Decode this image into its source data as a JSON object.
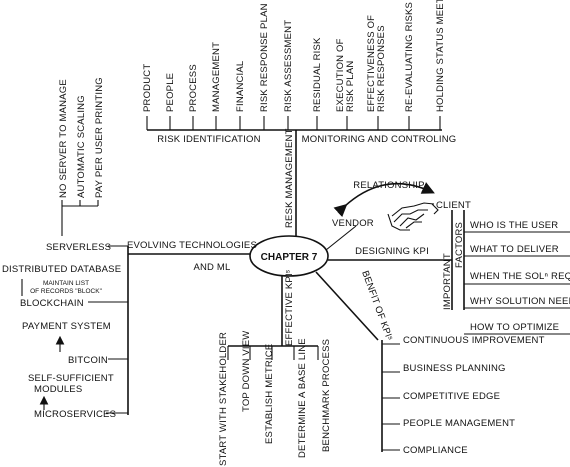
{
  "center": "CHAPTER 7",
  "risk": {
    "title": "RESK MANAGEMENT",
    "identification": {
      "title": "RISK IDENTIFICATION",
      "items": [
        "PRODUCT",
        "PEOPLE",
        "PROCESS",
        "MANAGEMENT",
        "FINANCIAL",
        "RISK RESPONSE PLAN",
        "RISK ASSESSMENT"
      ]
    },
    "monitoring": {
      "title": "MONITORING AND CONTROLING",
      "items": [
        "RESIDUAL RISK",
        "EXECUTION OF\nRISK PLAN",
        "EFFECTIVENESS OF\nRISK RESPONSES",
        "RE-EVALUATING RISKS",
        "HOLDING STATUS MEETING"
      ]
    }
  },
  "relationship": {
    "title": "RELATIONSHIP",
    "client": "CLIENT",
    "vendor": "VENDOR"
  },
  "kpi": {
    "title": "DESIGNING KPI",
    "factors_label": "FACTORS",
    "important_label": "IMPORTANT",
    "items": [
      "WHO IS THE USER",
      "WHAT TO DELIVER",
      "WHEN THE SOLⁿ REQ",
      "WHY SOLUTION NEEDED",
      "HOW TO OPTIMIZE"
    ]
  },
  "benefit": {
    "title": "BENFIT OF KPIˢ",
    "items": [
      "CONTINUOUS IMPROVEMENT",
      "BUSINESS PLANNING",
      "COMPETITIVE EDGE",
      "PEOPLE MANAGEMENT",
      "COMPLIANCE"
    ]
  },
  "effective": {
    "title": "EFFECTIVE KPIˢ",
    "items": [
      "START WITH STAKEHOLDER",
      "TOP DOWN VIEW",
      "ESTABLISH METRICE",
      "DETERMINE A BASE LINE",
      "BENCHMARK PROCESS"
    ]
  },
  "evolving": {
    "title": "EVOLVING TECHNOLOGIES",
    "subtitle": "AND ML",
    "serverless": {
      "title": "SERVERLESS",
      "items": [
        "NO SERVER TO MANAGE",
        "AUTOMATIC SCALING",
        "PAY PER USER PRINTING"
      ]
    },
    "distributed_db": "DISTRIBUTED DATABASE",
    "ledger_note_1": "MAINTAIN LIST",
    "ledger_note_2": "OF RECORDS \"BLOCK\"",
    "blockchain": "BLOCKCHAIN",
    "payment": "PAYMENT SYSTEM",
    "bitcoin": "BITCOIN",
    "self_sufficient_1": "SELF-SUFFICIENT",
    "self_sufficient_2": "MODULES",
    "microservices": "MICROSERVICES"
  }
}
